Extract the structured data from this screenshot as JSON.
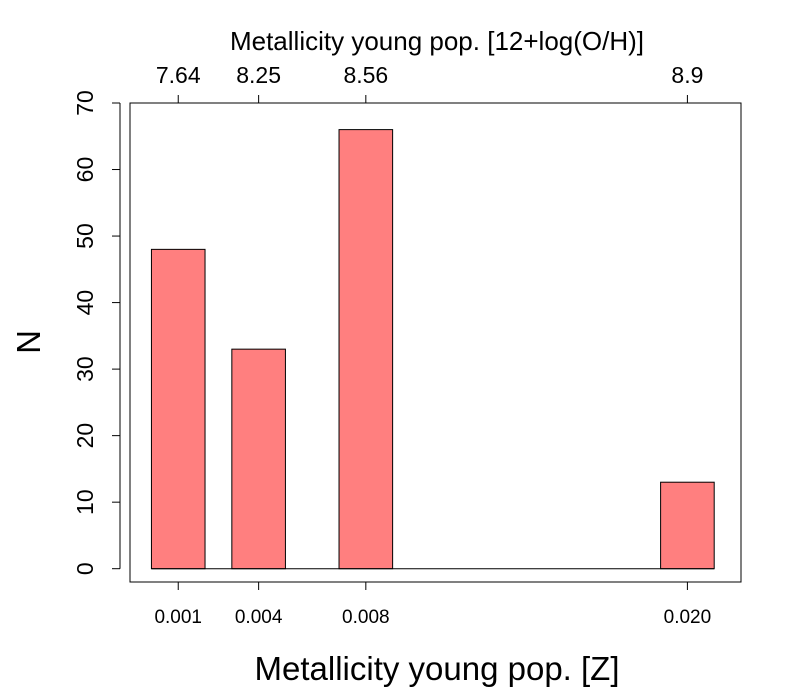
{
  "chart_data": {
    "type": "bar",
    "title": "",
    "xlabel": "Metallicity young pop. [Z]",
    "ylabel": "N",
    "top_axis_label": "Metallicity young pop. [12+log(O/H)]",
    "categories": [
      "0.001",
      "0.004",
      "0.008",
      "0.020"
    ],
    "x": [
      0.001,
      0.004,
      0.008,
      0.02
    ],
    "top_tick_labels": [
      "7.64",
      "8.25",
      "8.56",
      "8.9"
    ],
    "values": [
      48,
      33,
      66,
      13
    ],
    "bar_width": 0.002,
    "xlim": [
      -0.0008,
      0.022
    ],
    "ylim": [
      -2,
      70
    ],
    "yticks": [
      0,
      10,
      20,
      30,
      40,
      50,
      60,
      70
    ],
    "bar_color": "#ff7f7f",
    "edge_color": "#000000",
    "grid": false,
    "legend": false
  }
}
